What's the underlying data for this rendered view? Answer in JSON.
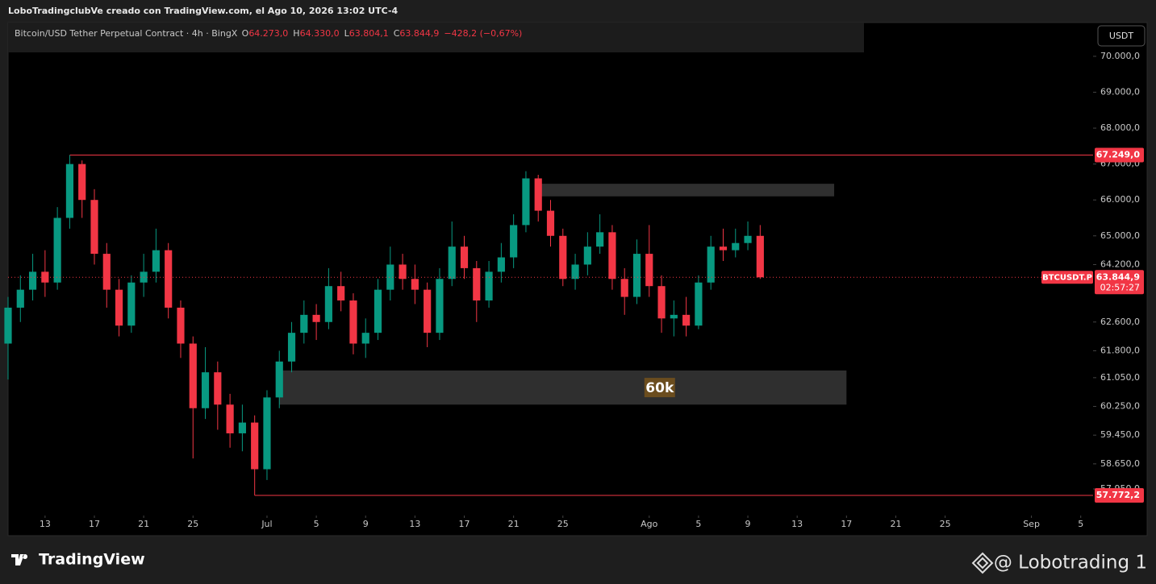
{
  "header": {
    "caption": "LoboTradingclubVe creado con TradingView.com, el Ago 10, 2026 13:02 UTC-4"
  },
  "legend": {
    "title": "Bitcoin/USD Tether Perpetual Contract · 4h · BingX",
    "items": [
      {
        "key": "O",
        "text": "64.273,0"
      },
      {
        "key": "H",
        "text": "64.330,0"
      },
      {
        "key": "L",
        "text": "63.804,1"
      },
      {
        "key": "C",
        "text": "63.844,9"
      }
    ],
    "change": "−428,2 (−0,67%)"
  },
  "currency_button": "USDT",
  "chart_data": {
    "type": "candlestick",
    "up_color": "#089981",
    "down_color": "#f23645",
    "x": [
      "2026-06-10",
      "2026-06-11",
      "2026-06-12",
      "2026-06-13",
      "2026-06-14",
      "2026-06-15",
      "2026-06-16",
      "2026-06-17",
      "2026-06-18",
      "2026-06-19",
      "2026-06-20",
      "2026-06-21",
      "2026-06-22",
      "2026-06-23",
      "2026-06-24",
      "2026-06-25",
      "2026-06-26",
      "2026-06-27",
      "2026-06-28",
      "2026-06-29",
      "2026-06-30",
      "2026-07-01",
      "2026-07-02",
      "2026-07-03",
      "2026-07-04",
      "2026-07-05",
      "2026-07-06",
      "2026-07-07",
      "2026-07-08",
      "2026-07-09",
      "2026-07-10",
      "2026-07-11",
      "2026-07-12",
      "2026-07-13",
      "2026-07-14",
      "2026-07-15",
      "2026-07-16",
      "2026-07-17",
      "2026-07-18",
      "2026-07-19",
      "2026-07-20",
      "2026-07-21",
      "2026-07-22",
      "2026-07-23",
      "2026-07-24",
      "2026-07-25",
      "2026-07-26",
      "2026-07-27",
      "2026-07-28",
      "2026-07-29",
      "2026-07-30",
      "2026-07-31",
      "2026-08-01",
      "2026-08-02",
      "2026-08-03",
      "2026-08-04",
      "2026-08-05",
      "2026-08-06",
      "2026-08-07",
      "2026-08-08",
      "2026-08-09",
      "2026-08-10"
    ],
    "open": [
      62000,
      63000,
      63500,
      64000,
      63700,
      65500,
      67000,
      66000,
      64500,
      63500,
      62500,
      63700,
      64000,
      64600,
      63000,
      62000,
      60200,
      61200,
      60300,
      59500,
      59800,
      58500,
      60500,
      61500,
      62300,
      62800,
      62600,
      63600,
      63200,
      62000,
      62300,
      63500,
      64200,
      63800,
      63500,
      62300,
      63800,
      64700,
      64100,
      63200,
      64000,
      64400,
      65300,
      66600,
      65700,
      65000,
      63800,
      64200,
      64700,
      65100,
      63800,
      63300,
      64500,
      63600,
      62700,
      62800,
      62500,
      63700,
      64700,
      64600,
      64800,
      65000
    ],
    "high": [
      63300,
      63900,
      64500,
      64600,
      65800,
      67249,
      67100,
      66300,
      64800,
      63800,
      63900,
      64500,
      65200,
      64800,
      63200,
      62200,
      61900,
      61500,
      60600,
      60300,
      60000,
      60700,
      61800,
      62600,
      63200,
      63100,
      64100,
      64000,
      63400,
      62700,
      63800,
      64700,
      64500,
      64200,
      63700,
      64100,
      65400,
      65000,
      64300,
      64300,
      64800,
      65600,
      66800,
      66700,
      66000,
      65200,
      64500,
      65100,
      65600,
      65300,
      64100,
      64900,
      65300,
      63900,
      63200,
      63300,
      63900,
      65000,
      65200,
      65200,
      65400,
      65300
    ],
    "low": [
      61000,
      62600,
      63200,
      63300,
      63500,
      65200,
      65500,
      64200,
      63000,
      62200,
      62300,
      63300,
      63700,
      62700,
      61600,
      58800,
      59900,
      59600,
      59100,
      59000,
      57772.2,
      58200,
      60200,
      61200,
      62000,
      62100,
      62400,
      62900,
      61700,
      61600,
      62100,
      63200,
      63500,
      63100,
      61900,
      62100,
      63600,
      63800,
      62600,
      63000,
      63700,
      64100,
      65100,
      65400,
      64700,
      63600,
      63500,
      63900,
      64500,
      63500,
      62800,
      63100,
      63300,
      62300,
      62200,
      62200,
      62400,
      63500,
      64300,
      64400,
      64600,
      63800
    ],
    "close": [
      63000,
      63500,
      64000,
      63700,
      65500,
      67000,
      66000,
      64500,
      63500,
      62500,
      63700,
      64000,
      64600,
      63000,
      62000,
      60200,
      61200,
      60300,
      59500,
      59800,
      58500,
      60500,
      61500,
      62300,
      62800,
      62600,
      63600,
      63200,
      62000,
      62300,
      63500,
      64200,
      63800,
      63500,
      62300,
      63800,
      64700,
      64100,
      63200,
      64000,
      64400,
      65300,
      66600,
      65700,
      65000,
      63800,
      64200,
      64700,
      65100,
      63800,
      63300,
      64500,
      63600,
      62700,
      62800,
      62500,
      63700,
      64700,
      64600,
      64800,
      65000,
      63844.9
    ],
    "xlim": [
      "2026-06-10",
      "2026-09-06"
    ],
    "xticks": [
      {
        "value": "2026-06-13",
        "label": "13"
      },
      {
        "value": "2026-06-17",
        "label": "17"
      },
      {
        "value": "2026-06-21",
        "label": "21"
      },
      {
        "value": "2026-06-25",
        "label": "25"
      },
      {
        "value": "2026-07-01",
        "label": "Jul"
      },
      {
        "value": "2026-07-05",
        "label": "5"
      },
      {
        "value": "2026-07-09",
        "label": "9"
      },
      {
        "value": "2026-07-13",
        "label": "13"
      },
      {
        "value": "2026-07-17",
        "label": "17"
      },
      {
        "value": "2026-07-21",
        "label": "21"
      },
      {
        "value": "2026-07-25",
        "label": "25"
      },
      {
        "value": "2026-08-01",
        "label": "Ago"
      },
      {
        "value": "2026-08-05",
        "label": "5"
      },
      {
        "value": "2026-08-09",
        "label": "9"
      },
      {
        "value": "2026-08-13",
        "label": "13"
      },
      {
        "value": "2026-08-17",
        "label": "17"
      },
      {
        "value": "2026-08-21",
        "label": "21"
      },
      {
        "value": "2026-08-25",
        "label": "25"
      },
      {
        "value": "2026-09-01",
        "label": "Sep"
      },
      {
        "value": "2026-09-05",
        "label": "5"
      }
    ],
    "ylim": [
      56650,
      70940
    ],
    "yticks": [
      {
        "value": 70000,
        "label": "70.000,0"
      },
      {
        "value": 69000,
        "label": "69.000,0"
      },
      {
        "value": 68000,
        "label": "68.000,0"
      },
      {
        "value": 67000,
        "label": "67.000,0"
      },
      {
        "value": 66000,
        "label": "66.000,0"
      },
      {
        "value": 65000,
        "label": "65.000,0"
      },
      {
        "value": 64200,
        "label": "64.200,0"
      },
      {
        "value": 62600,
        "label": "62.600,0"
      },
      {
        "value": 61800,
        "label": "61.800,0"
      },
      {
        "value": 61050,
        "label": "61.050,0"
      },
      {
        "value": 60250,
        "label": "60.250,0"
      },
      {
        "value": 59450,
        "label": "59.450,0"
      },
      {
        "value": 58650,
        "label": "58.650,0"
      },
      {
        "value": 57950,
        "label": "57.950,0"
      }
    ],
    "hlines": [
      {
        "value": 67249,
        "label": "67.249,0",
        "from": "2026-06-15"
      },
      {
        "value": 57772.2,
        "label": "57.772,2",
        "from": "2026-06-30"
      }
    ],
    "zones": [
      {
        "from": "2026-07-23",
        "to": "2026-08-16",
        "low": 66100,
        "high": 66450
      },
      {
        "from": "2026-07-02",
        "to": "2026-08-17",
        "low": 60300,
        "high": 61250,
        "label": "60k"
      }
    ],
    "last_price": {
      "value": 63844.9,
      "label": "63.844,9",
      "symbol": "BTCUSDT.P",
      "countdown": "02:57:27"
    }
  },
  "footer": {
    "brand": "TradingView",
    "watermark": "@ Lobotrading 1"
  }
}
